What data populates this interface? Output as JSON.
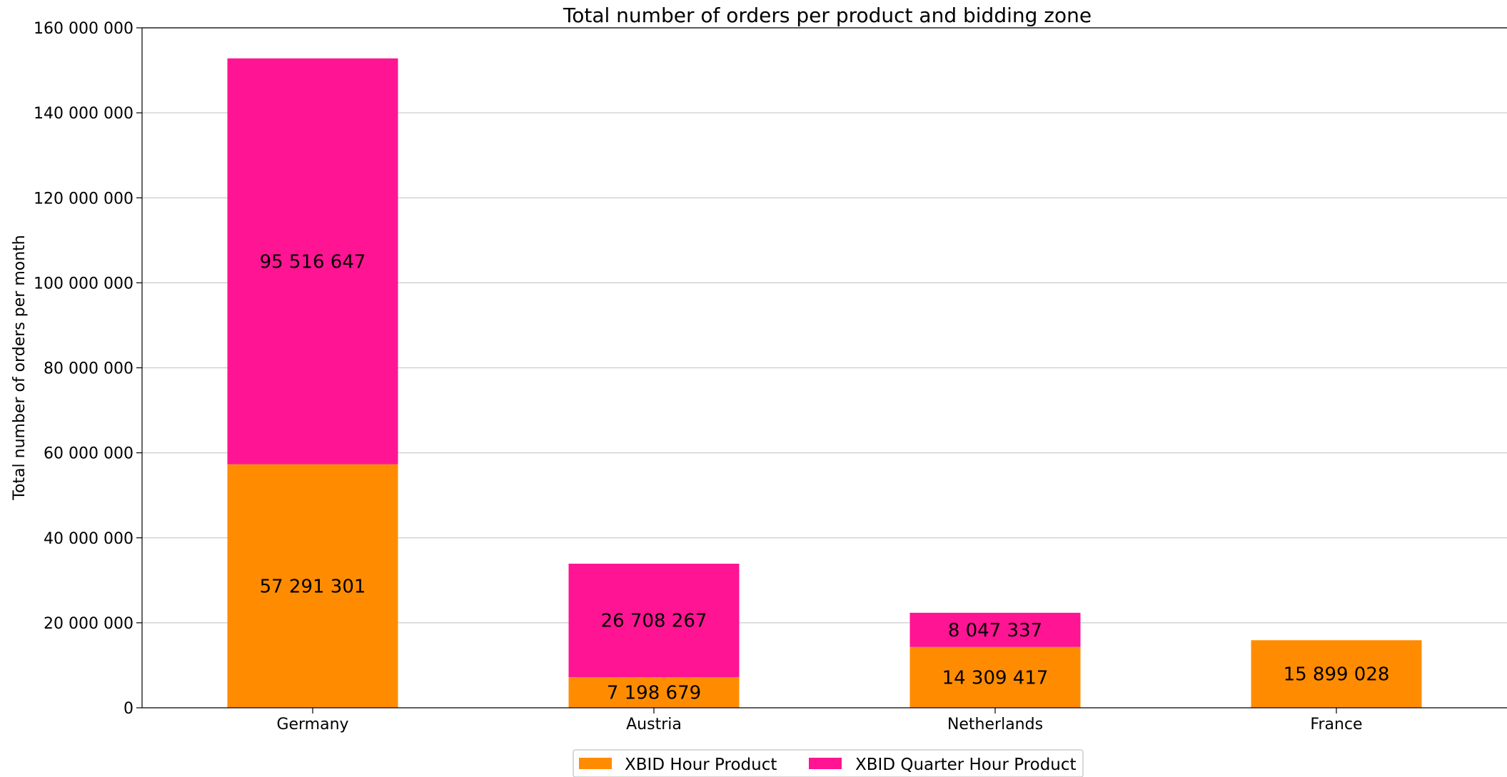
{
  "chart_data": {
    "type": "bar",
    "stacked": true,
    "title": "Total number of orders per product and bidding zone",
    "xlabel": "",
    "ylabel": "Total number of orders per month",
    "categories": [
      "Germany",
      "Austria",
      "Netherlands",
      "France"
    ],
    "series": [
      {
        "name": "XBID Hour Product",
        "color": "#ff8c00",
        "values": [
          57291301,
          7198679,
          14309417,
          15899028
        ],
        "labels": [
          "57 291 301",
          "7 198 679",
          "14 309 417",
          "15 899 028"
        ]
      },
      {
        "name": "XBID Quarter Hour Product",
        "color": "#ff1493",
        "values": [
          95516647,
          26708267,
          8047337,
          0
        ],
        "labels": [
          "95 516 647",
          "26 708 267",
          "8 047 337",
          ""
        ]
      }
    ],
    "ylim": [
      0,
      160000000
    ],
    "yticks": [
      0,
      20000000,
      40000000,
      60000000,
      80000000,
      100000000,
      120000000,
      140000000,
      160000000
    ],
    "ytick_labels": [
      "0",
      "20 000 000",
      "40 000 000",
      "60 000 000",
      "80 000 000",
      "100 000 000",
      "120 000 000",
      "140 000 000",
      "160 000 000"
    ],
    "grid": "horizontal",
    "legend_position": "bottom-center"
  }
}
